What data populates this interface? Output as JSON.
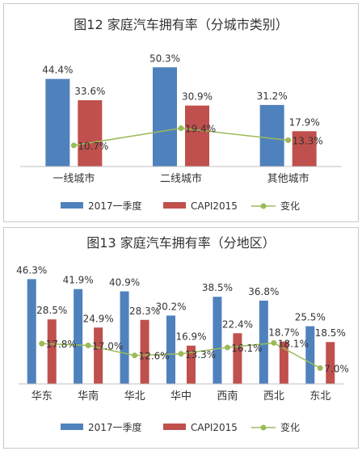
{
  "colors": {
    "series_2017": "#4f81bd",
    "series_capi": "#c0504d",
    "change": "#9bbb59",
    "axis": "#bfbfbf"
  },
  "chart_data": [
    {
      "type": "bar",
      "title": "图12 家庭汽车拥有率（分城市类别）",
      "categories": [
        "一线城市",
        "二线城市",
        "其他城市"
      ],
      "series": [
        {
          "name": "2017一季度",
          "values": [
            44.4,
            50.3,
            31.2
          ],
          "labels": [
            "44.4%",
            "50.3%",
            "31.2%"
          ]
        },
        {
          "name": "CAPI2015",
          "values": [
            33.6,
            30.9,
            17.9
          ],
          "labels": [
            "33.6%",
            "30.9%",
            "17.9%"
          ]
        },
        {
          "name": "变化",
          "type": "line",
          "values": [
            10.7,
            19.4,
            13.3
          ],
          "labels": [
            "10.7%",
            "19.4%",
            "13.3%"
          ]
        }
      ],
      "ylim": [
        0,
        55
      ],
      "grid": false,
      "legend": "bottom"
    },
    {
      "type": "bar",
      "title": "图13 家庭汽车拥有率（分地区）",
      "categories": [
        "华东",
        "华南",
        "华北",
        "华中",
        "西南",
        "西北",
        "东北"
      ],
      "series": [
        {
          "name": "2017一季度",
          "values": [
            46.3,
            41.9,
            40.9,
            30.2,
            38.5,
            36.8,
            25.5
          ],
          "labels": [
            "46.3%",
            "41.9%",
            "40.9%",
            "30.2%",
            "38.5%",
            "36.8%",
            "25.5%"
          ]
        },
        {
          "name": "CAPI2015",
          "values": [
            28.5,
            24.9,
            28.3,
            16.9,
            22.4,
            18.7,
            18.5
          ],
          "labels": [
            "28.5%",
            "24.9%",
            "28.3%",
            "16.9%",
            "22.4%",
            "18.7%",
            "18.5%"
          ]
        },
        {
          "name": "变化",
          "type": "line",
          "values": [
            17.8,
            17.0,
            12.6,
            13.3,
            16.1,
            18.1,
            7.0
          ],
          "labels": [
            "17.8%",
            "17.0%",
            "12.6%",
            "13.3%",
            "16.1%",
            "18.1%",
            "7.0%"
          ]
        }
      ],
      "ylim": [
        0,
        50
      ],
      "grid": false,
      "legend": "bottom"
    }
  ]
}
